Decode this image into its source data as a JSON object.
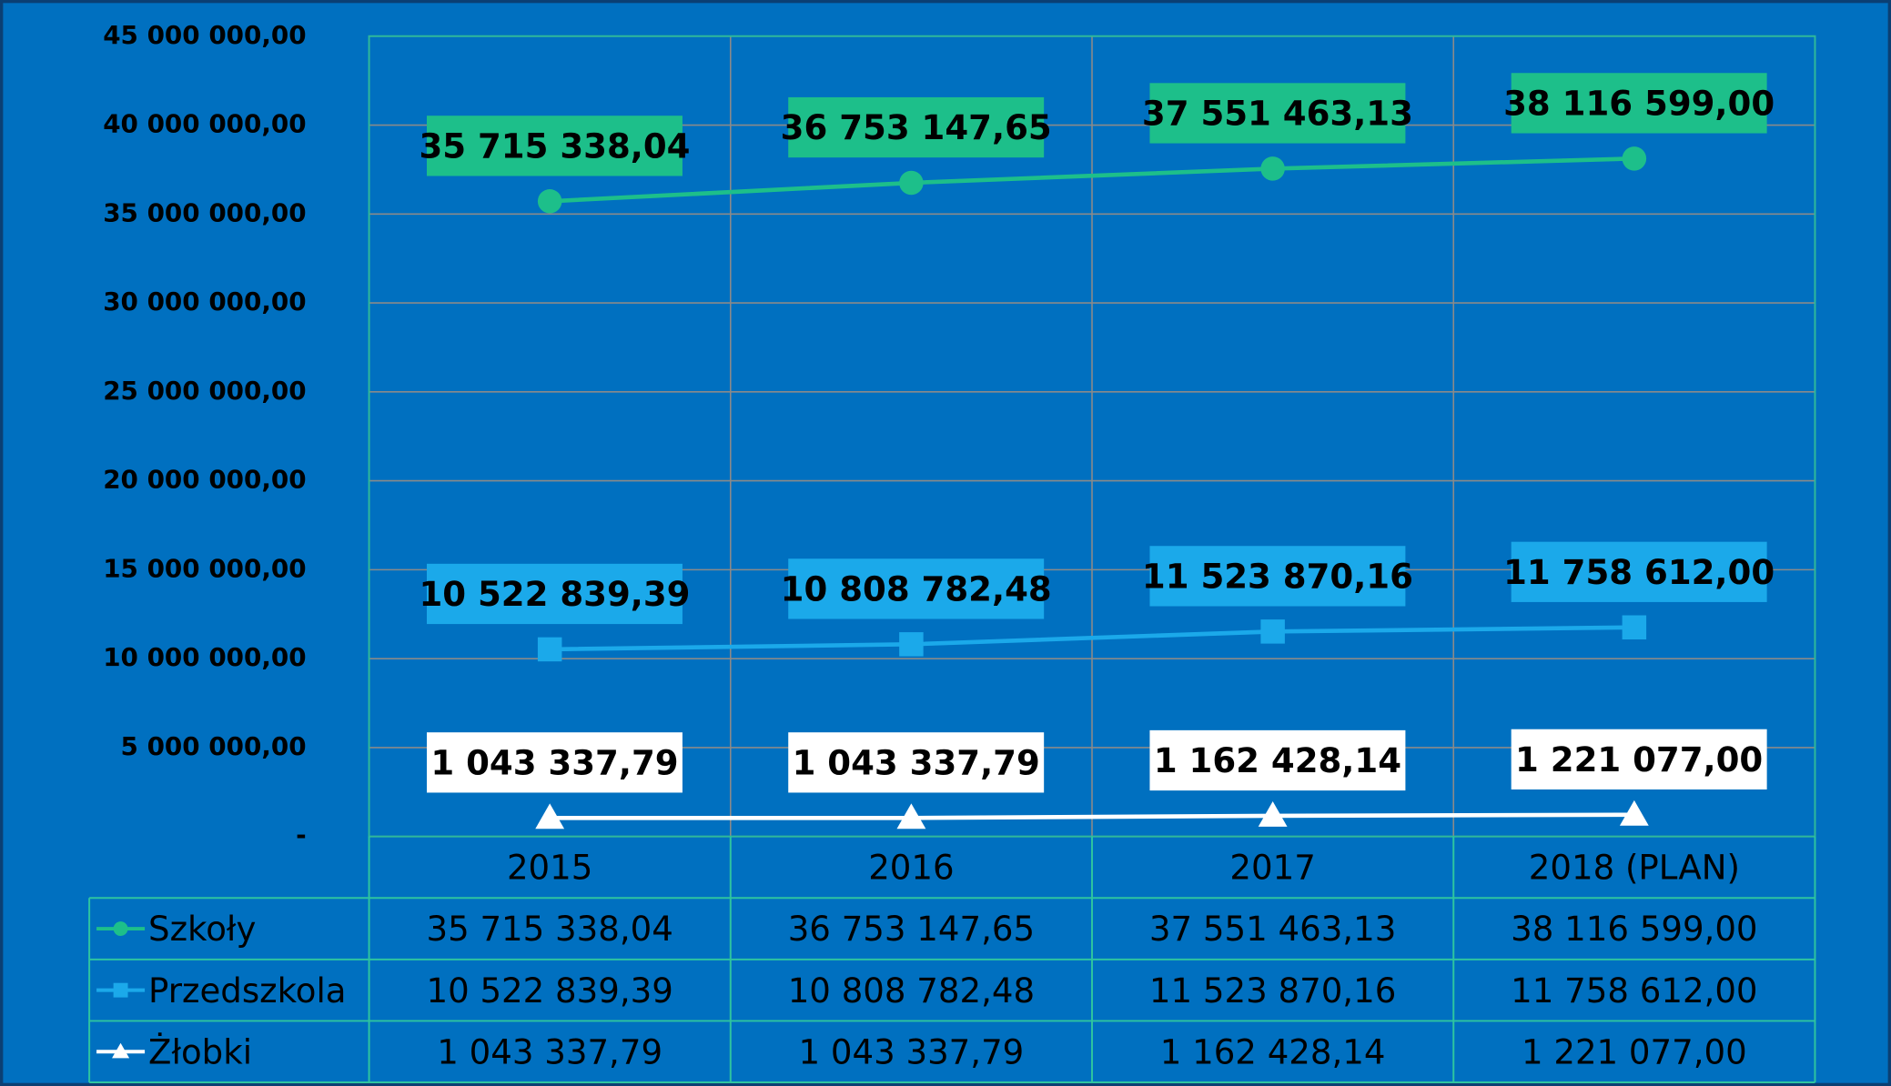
{
  "chart_data": {
    "type": "line",
    "categories": [
      "2015",
      "2016",
      "2017",
      "2018 (PLAN)"
    ],
    "series": [
      {
        "name": "Szkoły",
        "color": "#1dbf8a",
        "marker": "circle",
        "values": [
          35715338.04,
          36753147.65,
          37551463.13,
          38116599.0
        ],
        "value_labels": [
          "35 715 338,04",
          "36 753 147,65",
          "37 551 463,13",
          "38 116 599,00"
        ]
      },
      {
        "name": "Przedszkola",
        "color": "#1ba9ea",
        "marker": "square",
        "values": [
          10522839.39,
          10808782.48,
          11523870.16,
          11758612.0
        ],
        "value_labels": [
          "10 522 839,39",
          "10 808 782,48",
          "11 523 870,16",
          "11 758 612,00"
        ]
      },
      {
        "name": "Żłobki",
        "color": "#ffffff",
        "marker": "triangle",
        "values": [
          1043337.79,
          1043337.79,
          1162428.14,
          1221077.0
        ],
        "value_labels": [
          "1 043 337,79",
          "1 043 337,79",
          "1 162 428,14",
          "1 221 077,00"
        ]
      }
    ],
    "ylim": [
      0,
      45000000
    ],
    "yticks": [
      {
        "value": 0,
        "label": "-"
      },
      {
        "value": 5000000,
        "label": "5 000 000,00"
      },
      {
        "value": 10000000,
        "label": "10 000 000,00"
      },
      {
        "value": 15000000,
        "label": "15 000 000,00"
      },
      {
        "value": 20000000,
        "label": "20 000 000,00"
      },
      {
        "value": 25000000,
        "label": "25 000 000,00"
      },
      {
        "value": 30000000,
        "label": "30 000 000,00"
      },
      {
        "value": 35000000,
        "label": "35 000 000,00"
      },
      {
        "value": 40000000,
        "label": "40 000 000,00"
      },
      {
        "value": 45000000,
        "label": "45 000 000,00"
      }
    ],
    "grid": true,
    "data_table": true
  }
}
